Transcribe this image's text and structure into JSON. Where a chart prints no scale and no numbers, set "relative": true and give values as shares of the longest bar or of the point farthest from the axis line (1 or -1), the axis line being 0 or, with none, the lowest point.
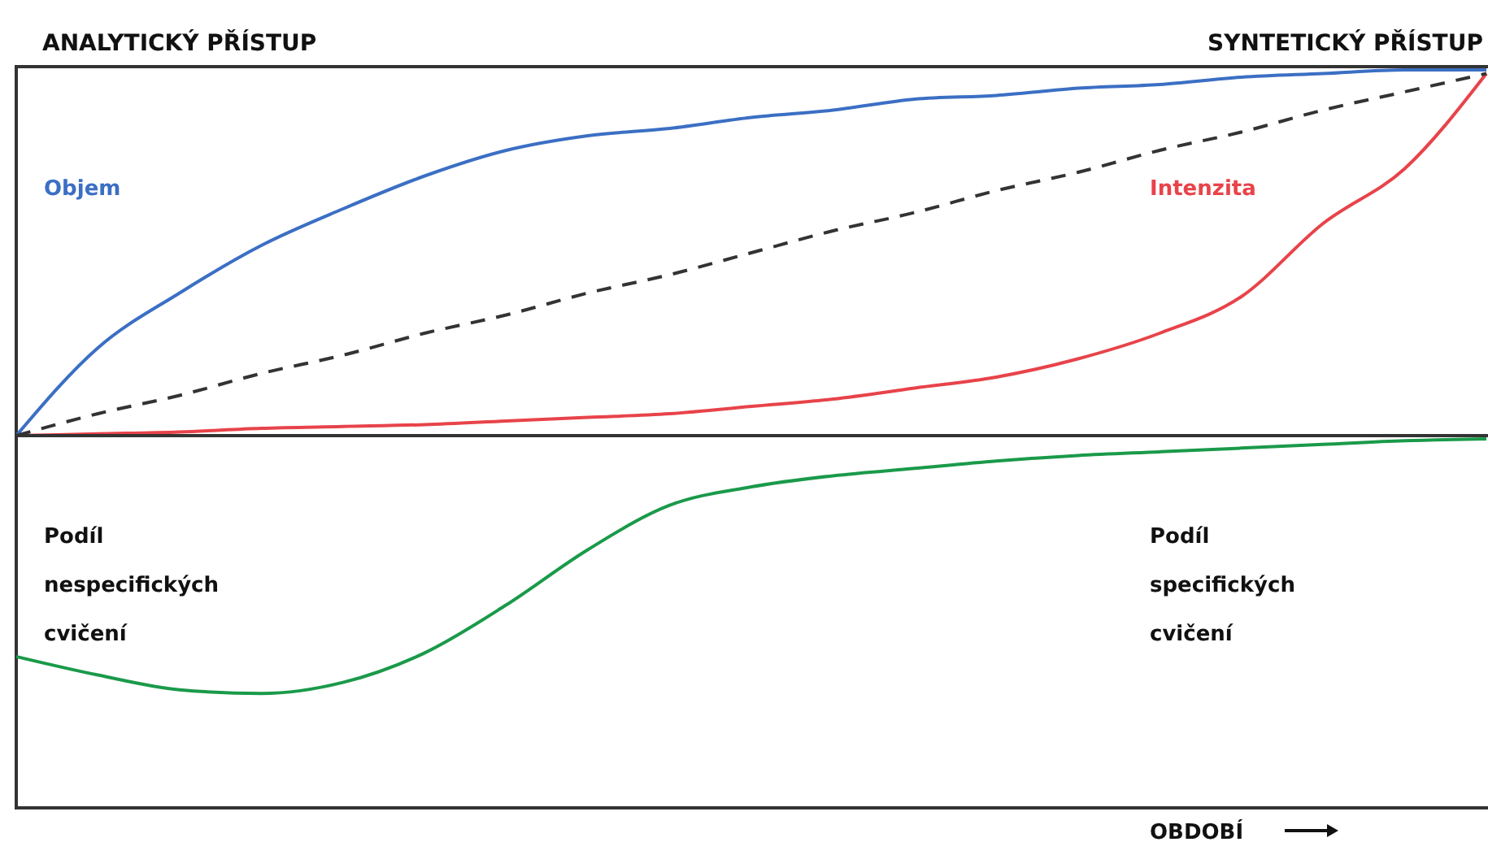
{
  "chart_data": [
    {
      "type": "line",
      "relative": true,
      "categories": [
        null,
        null,
        null,
        null,
        null,
        null,
        null,
        null,
        null,
        null,
        null,
        null,
        null,
        null,
        null,
        null,
        null,
        null,
        null
      ],
      "series": [
        {
          "name": "Objem",
          "color": "#3b6fc4",
          "values": [
            0,
            0.24,
            0.39,
            0.52,
            0.62,
            0.71,
            0.78,
            0.82,
            0.84,
            0.87,
            0.89,
            0.92,
            0.93,
            0.95,
            0.96,
            0.98,
            0.99,
            1,
            1
          ]
        },
        {
          "name": "Intenzita",
          "color": "#e8434a",
          "values": [
            0,
            0.005,
            0.01,
            0.02,
            0.025,
            0.03,
            0.04,
            0.05,
            0.06,
            0.08,
            0.1,
            0.13,
            0.16,
            0.21,
            0.28,
            0.38,
            0.58,
            0.73,
            0.99
          ]
        },
        {
          "color": "#333333",
          "line_style": "dashed",
          "values": [
            0,
            0.06,
            0.11,
            0.17,
            0.22,
            0.28,
            0.33,
            0.39,
            0.44,
            0.5,
            0.56,
            0.61,
            0.67,
            0.72,
            0.78,
            0.83,
            0.89,
            0.94,
            0.99
          ]
        }
      ],
      "annotations": [
        "ANALYTICKÝ PŘÍSTUP",
        "SYNTETICKÝ PŘÍSTUP"
      ]
    },
    {
      "type": "line",
      "relative": true,
      "categories": [
        null,
        null,
        null,
        null,
        null,
        null,
        null,
        null,
        null,
        null,
        null,
        null,
        null,
        null,
        null,
        null,
        null,
        null,
        null
      ],
      "series": [
        {
          "color": "#1a9a4a",
          "values": [
            0.41,
            0.36,
            0.32,
            0.31,
            0.34,
            0.42,
            0.55,
            0.7,
            0.82,
            0.87,
            0.9,
            0.92,
            0.94,
            0.955,
            0.965,
            0.975,
            0.985,
            0.995,
            1
          ]
        }
      ],
      "annotations": [
        "Podíl nespecifických cvičení",
        "Podíl specifických cvičení"
      ],
      "xlabel": "OBDOBÍ"
    }
  ]
}
